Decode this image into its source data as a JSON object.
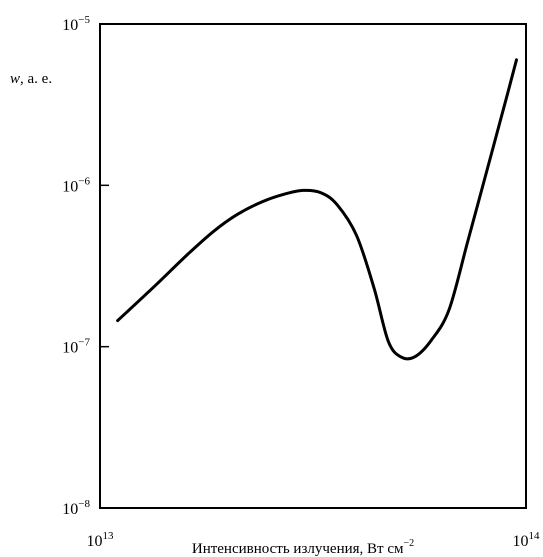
{
  "chart_data": {
    "type": "line",
    "title": "",
    "xlabel": "Интенсивность излучения, Вт см",
    "xlabel_unit_exponent": "−2",
    "ylabel": "w, а. е.",
    "ylabel_italic_part": "w",
    "ylabel_rest": ", а. е.",
    "x_scale": "log",
    "y_scale": "log",
    "xlim": [
      10000000000000.0,
      100000000000000.0
    ],
    "ylim": [
      1e-08,
      1e-05
    ],
    "grid": false,
    "x_ticks": [
      {
        "value": 10000000000000.0,
        "base": "10",
        "exp": "13"
      },
      {
        "value": 100000000000000.0,
        "base": "10",
        "exp": "14"
      }
    ],
    "y_ticks": [
      {
        "value": 1e-05,
        "base": "10",
        "exp": "−5"
      },
      {
        "value": 1e-06,
        "base": "10",
        "exp": "−6"
      },
      {
        "value": 1e-07,
        "base": "10",
        "exp": "−7"
      },
      {
        "value": 1e-08,
        "base": "10",
        "exp": "−8"
      }
    ],
    "series": [
      {
        "color": "#000000",
        "x": [
          11000000000000.0,
          13500000000000.0,
          16000000000000.0,
          18500000000000.0,
          21000000000000.0,
          24000000000000.0,
          27000000000000.0,
          30000000000000.0,
          33000000000000.0,
          36000000000000.0,
          40000000000000.0,
          44000000000000.0,
          47500000000000.0,
          51000000000000.0,
          55000000000000.0,
          60000000000000.0,
          66000000000000.0,
          73000000000000.0,
          82000000000000.0,
          91000000000000.0,
          95000000000000.0
        ],
        "y": [
          1.45e-07,
          2.4e-07,
          3.7e-07,
          5.2e-07,
          6.6e-07,
          7.9e-07,
          8.8e-07,
          9.3e-07,
          9e-07,
          7.6e-07,
          4.9e-07,
          2.3e-07,
          1.08e-07,
          8.6e-08,
          8.7e-08,
          1.1e-07,
          1.7e-07,
          4.5e-07,
          1.4e-06,
          3.9e-06,
          6e-06
        ]
      }
    ]
  }
}
